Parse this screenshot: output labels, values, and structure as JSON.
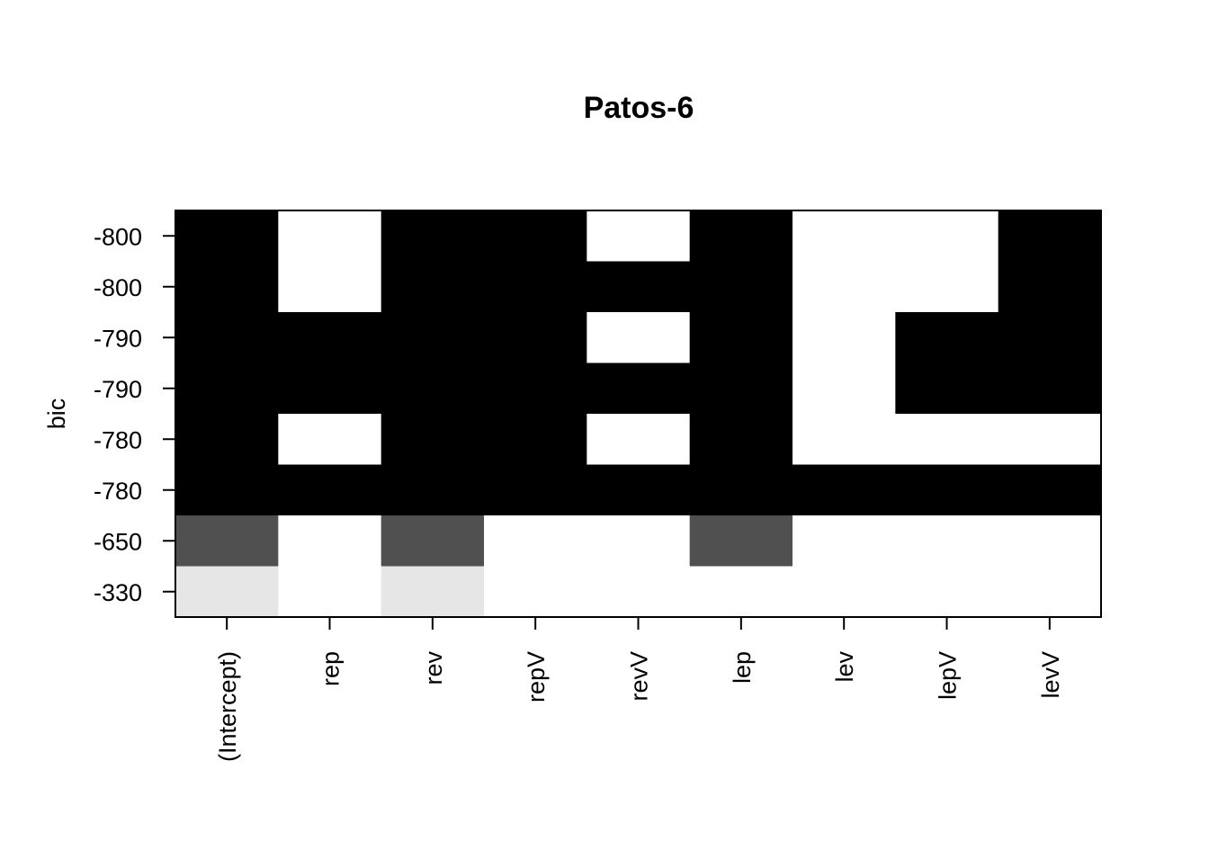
{
  "chart_data": {
    "type": "heatmap",
    "title": "Patos-6",
    "ylabel": "bic",
    "xlabel": "",
    "x_categories": [
      "(Intercept)",
      "rep",
      "rev",
      "repV",
      "revV",
      "lep",
      "lev",
      "lepV",
      "levV"
    ],
    "y_tick_labels": [
      "-800",
      "-800",
      "-790",
      "-790",
      "-780",
      "-780",
      "-650",
      "-330"
    ],
    "row_shades": [
      "#000000",
      "#000000",
      "#000000",
      "#000000",
      "#000000",
      "#000000",
      "#505050",
      "#e6e6e6"
    ],
    "empty_color": "#ffffff",
    "inclusion": [
      [
        1,
        0,
        1,
        1,
        0,
        1,
        0,
        0,
        1
      ],
      [
        1,
        0,
        1,
        1,
        1,
        1,
        0,
        0,
        1
      ],
      [
        1,
        1,
        1,
        1,
        0,
        1,
        0,
        1,
        1
      ],
      [
        1,
        1,
        1,
        1,
        1,
        1,
        0,
        1,
        1
      ],
      [
        1,
        0,
        1,
        1,
        0,
        1,
        0,
        0,
        0
      ],
      [
        1,
        1,
        1,
        1,
        1,
        1,
        1,
        1,
        1
      ],
      [
        1,
        0,
        1,
        0,
        0,
        1,
        0,
        0,
        0
      ],
      [
        1,
        0,
        1,
        0,
        0,
        0,
        0,
        0,
        0
      ]
    ],
    "grid": false,
    "legend": "none"
  }
}
